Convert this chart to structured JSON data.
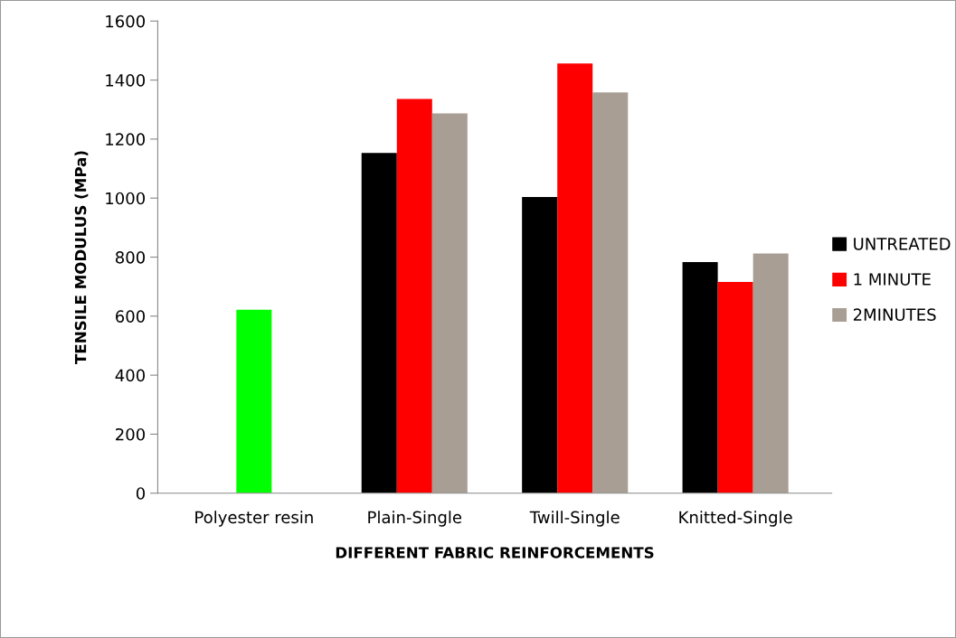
{
  "chart_data": {
    "type": "bar",
    "xlabel": "DIFFERENT FABRIC REINFORCEMENTS",
    "ylabel": "TENSILE MODULUS (MPa)",
    "categories": [
      "Polyester resin",
      "Plain-Single",
      "Twill-Single",
      "Knitted-Single"
    ],
    "series": [
      {
        "name": "UNTREATED",
        "color": "#000000",
        "colors": [
          "#00ff00",
          "#000000",
          "#000000",
          "#000000"
        ],
        "values": [
          622,
          1153,
          1004,
          783
        ]
      },
      {
        "name": "1 MINUTE",
        "color": "#ff0000",
        "values": [
          null,
          1336,
          1456,
          716
        ]
      },
      {
        "name": "2MINUTES",
        "color": "#a89e94",
        "values": [
          null,
          1287,
          1358,
          812
        ]
      }
    ],
    "ylim": [
      0,
      1600
    ],
    "yticks": [
      0,
      200,
      400,
      600,
      800,
      1000,
      1200,
      1400,
      1600
    ],
    "grid": false,
    "legend": "right"
  }
}
